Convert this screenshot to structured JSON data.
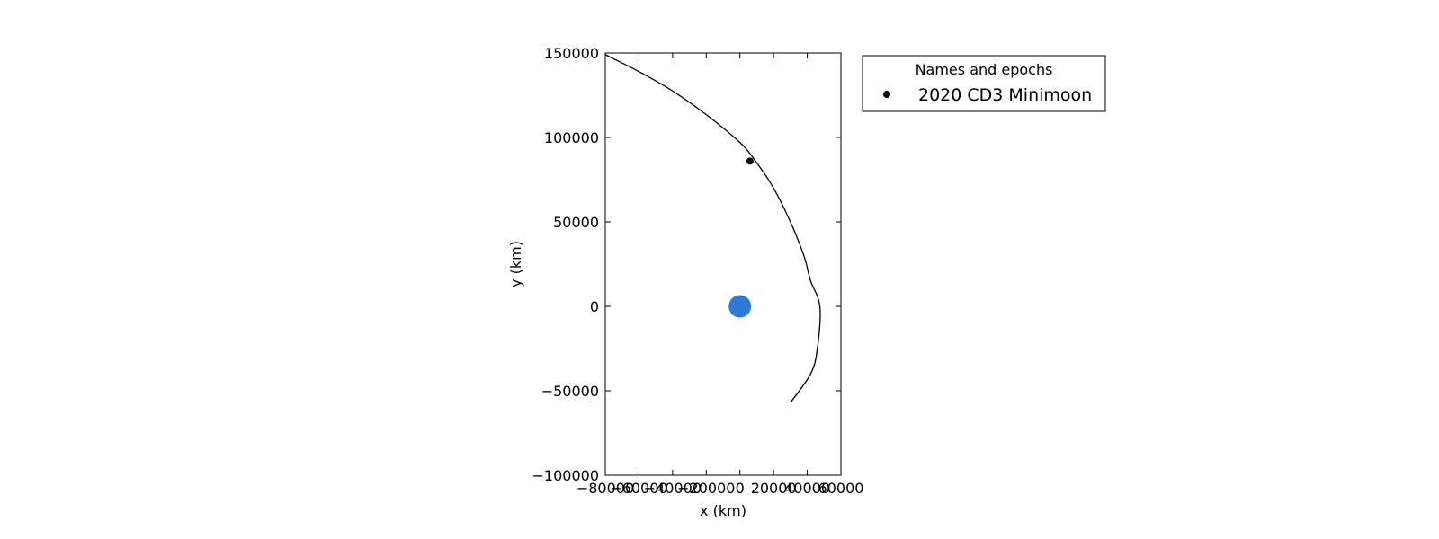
{
  "chart_data": {
    "type": "line",
    "title": "",
    "xlabel": "x (km)",
    "ylabel": "y (km)",
    "xlim": [
      -80000,
      60000
    ],
    "ylim": [
      -100000,
      150000
    ],
    "x_ticks": [
      -80000,
      -60000,
      -40000,
      -20000,
      0,
      20000,
      40000,
      60000
    ],
    "y_ticks": [
      -100000,
      -50000,
      0,
      50000,
      100000,
      150000
    ],
    "x_tick_labels": [
      "−80000",
      "−60000",
      "−40000",
      "−20000",
      "0",
      "20000",
      "40000",
      "60000"
    ],
    "y_tick_labels": [
      "−100000",
      "−50000",
      "0",
      "50000",
      "100000",
      "150000"
    ],
    "grid": false,
    "legend": {
      "title": "Names and epochs",
      "placement": "outside-right-top",
      "entries": [
        {
          "label": "2020 CD3 Minimoon",
          "marker": "dot",
          "color": "#000000"
        }
      ]
    },
    "series": [
      {
        "name": "2020 CD3 Minimoon",
        "color": "#000000",
        "points": [
          [
            -80000,
            149000
          ],
          [
            -60000,
            139000
          ],
          [
            -40000,
            127500
          ],
          [
            -20000,
            113500
          ],
          [
            0,
            97000
          ],
          [
            10000,
            85000
          ],
          [
            20000,
            70000
          ],
          [
            30000,
            50000
          ],
          [
            38000,
            30000
          ],
          [
            42000,
            15000
          ],
          [
            47500,
            0
          ],
          [
            46000,
            -25000
          ],
          [
            42000,
            -40000
          ],
          [
            30000,
            -57000
          ]
        ],
        "marker_point": [
          6000,
          86000
        ]
      }
    ],
    "central_body": {
      "x": 0,
      "y": 0,
      "color": "#2b7bd4"
    }
  }
}
